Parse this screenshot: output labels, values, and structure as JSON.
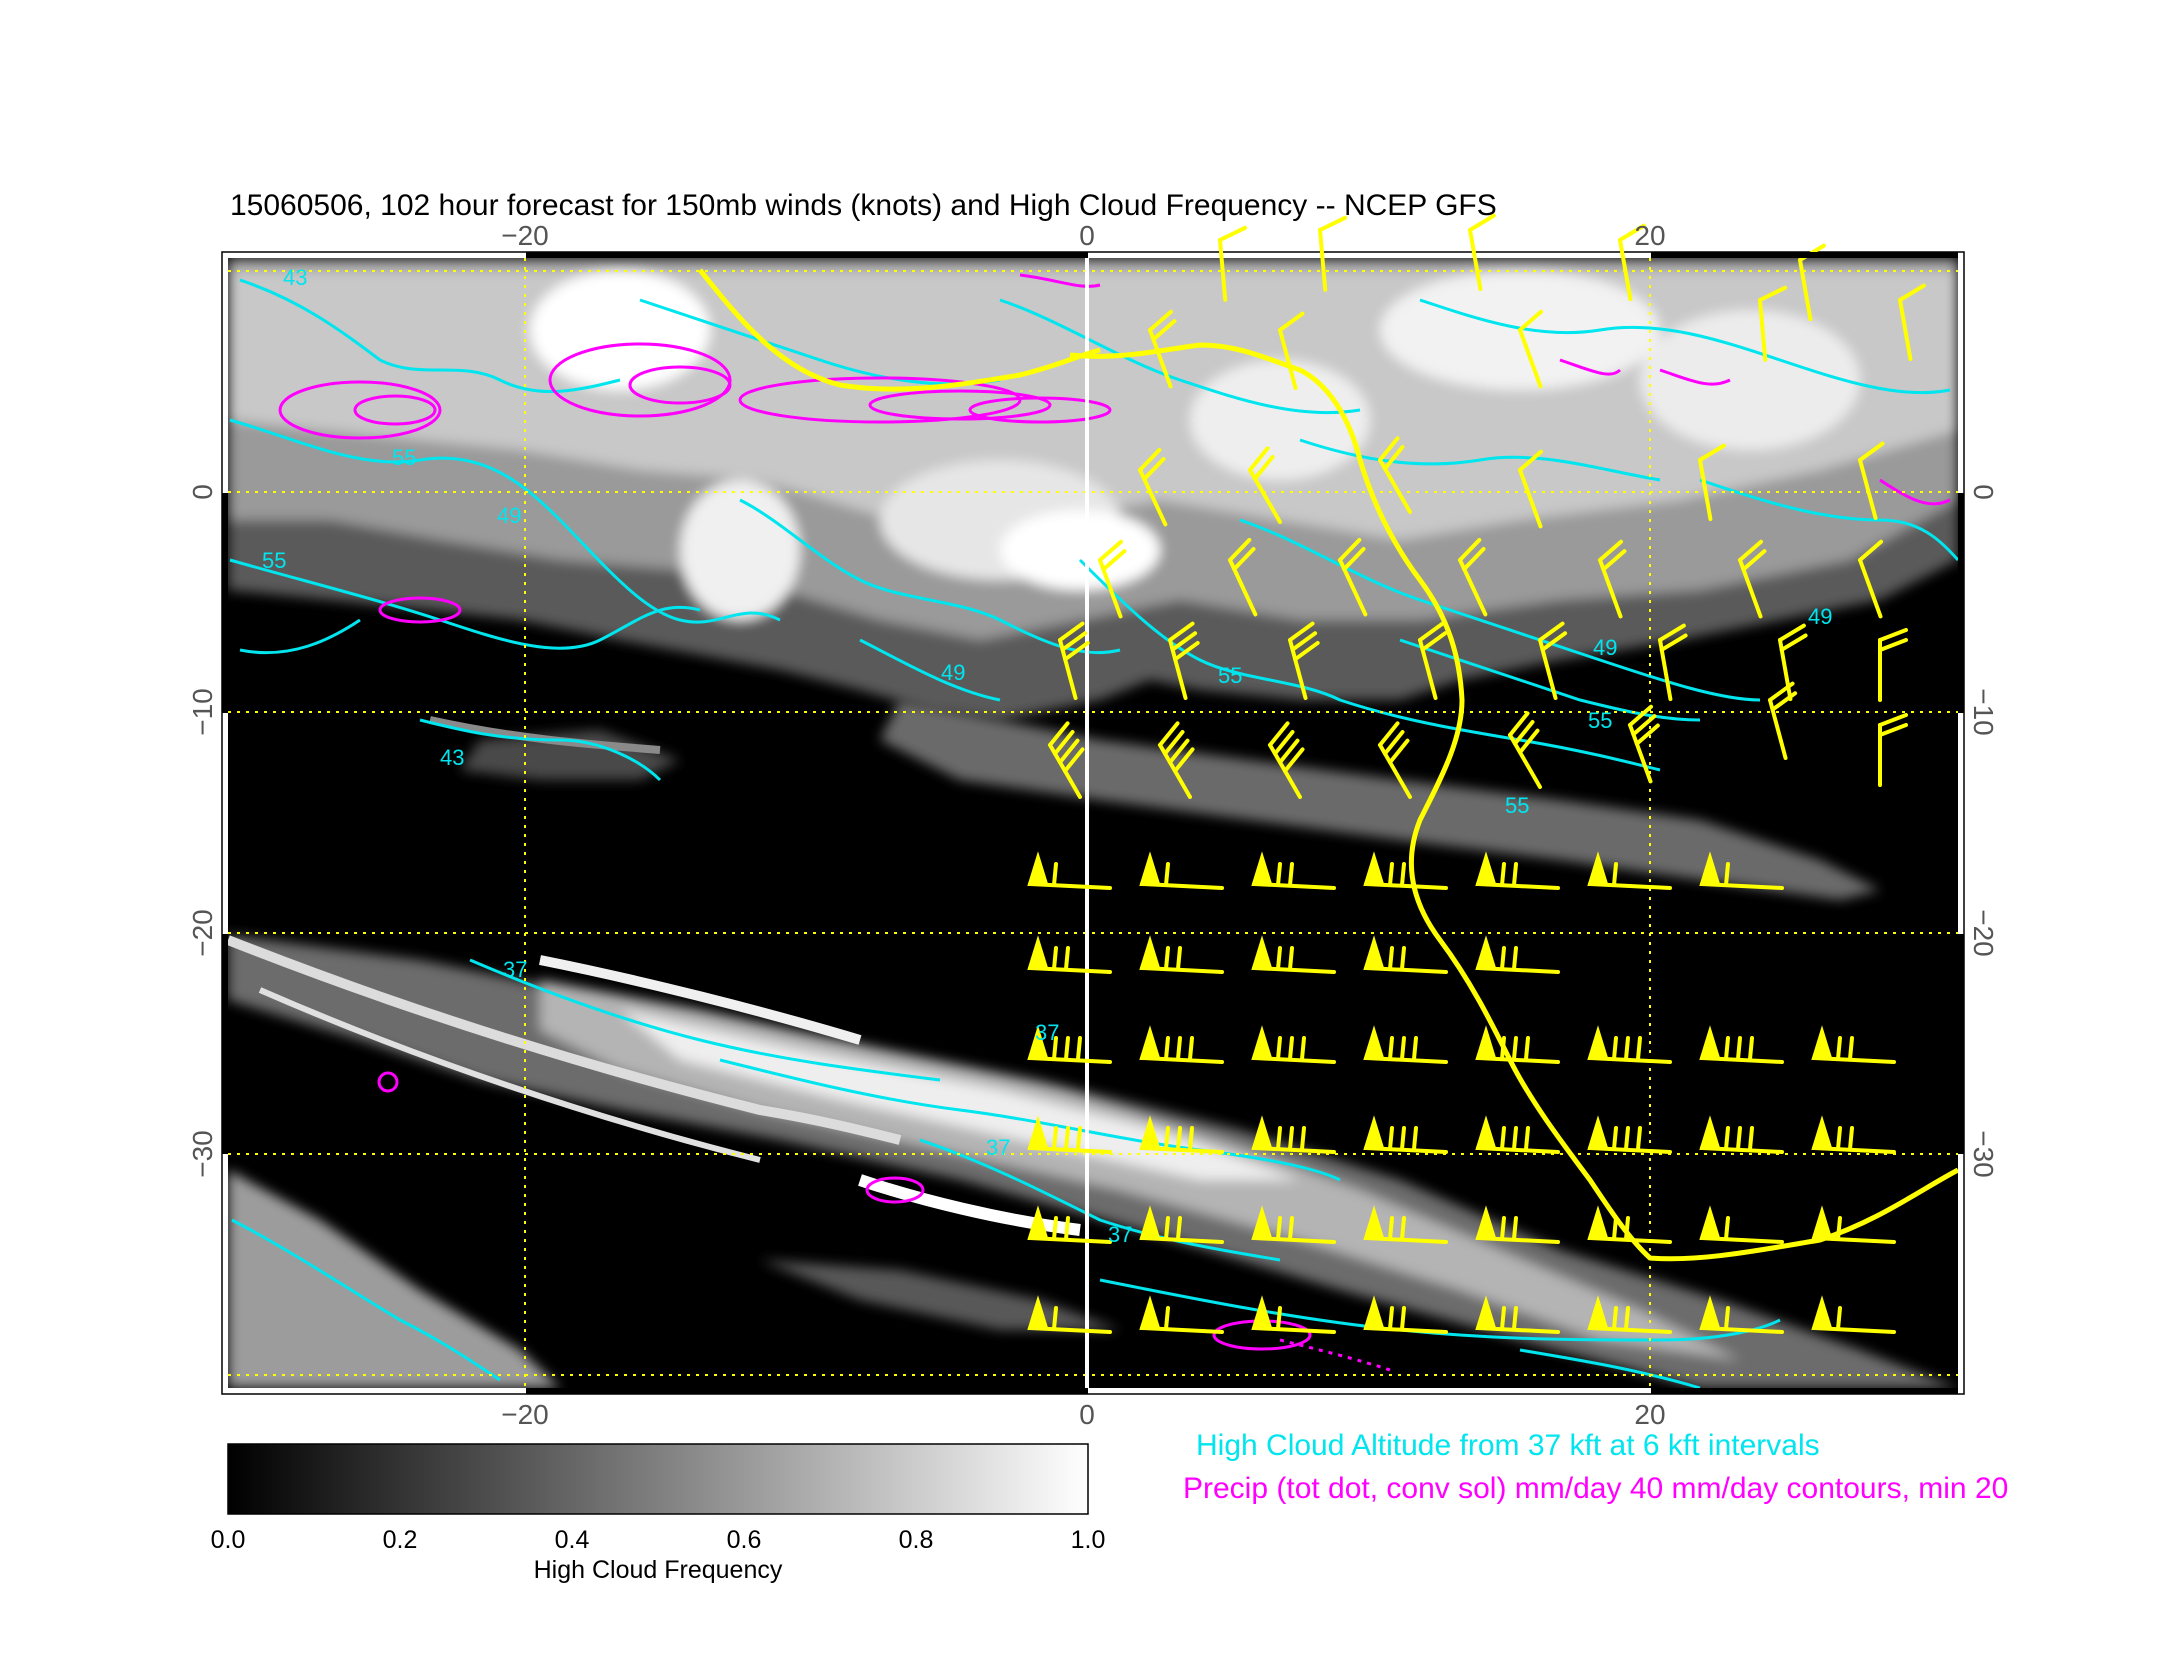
{
  "title": "15060506, 102 hour forecast for 150mb winds (knots) and High Cloud Frequency -- NCEP GFS",
  "axes": {
    "x_ticks": [
      "−20",
      "0",
      "20"
    ],
    "y_ticks": [
      "0",
      "−10",
      "−20",
      "−30"
    ]
  },
  "contour_labels": [
    "43",
    "55",
    "49",
    "55",
    "49",
    "43",
    "55",
    "49",
    "55",
    "49",
    "55",
    "37",
    "37",
    "37",
    "37"
  ],
  "legend": {
    "cloud_altitude": "High Cloud Altitude from 37 kft at 6 kft intervals",
    "precip": "Precip (tot dot, conv sol) mm/day 40 mm/day contours, min 20"
  },
  "colorbar": {
    "ticks": [
      "0.0",
      "0.2",
      "0.4",
      "0.6",
      "0.8",
      "1.0"
    ],
    "label": "High Cloud Frequency"
  },
  "colors": {
    "cloud_contour": "#00e5ee",
    "precip_contour": "#ff00ff",
    "wind_barb": "#ffff00",
    "grid": "#ffff00",
    "background_field": "#000000"
  }
}
